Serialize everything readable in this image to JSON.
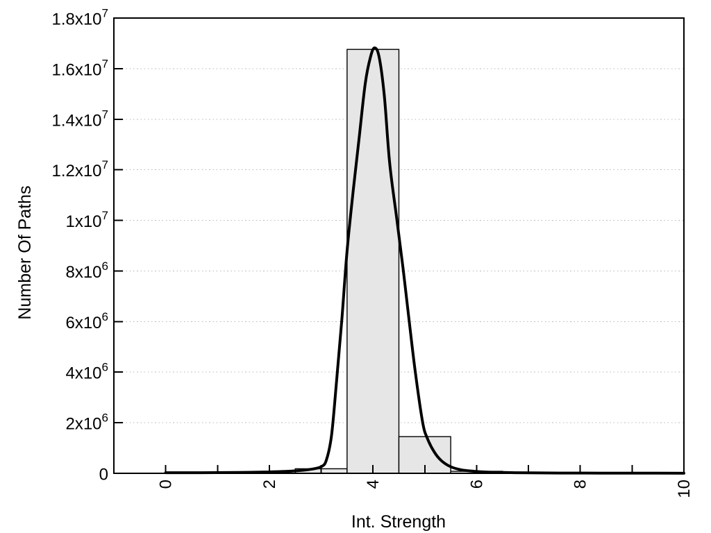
{
  "chart_data": {
    "type": "bar",
    "subtype": "histogram_with_fit_curve",
    "title": "",
    "xlabel": "Int. Strength",
    "ylabel": "Number Of Paths",
    "xlim": [
      -1,
      10
    ],
    "ylim": [
      0,
      18000000
    ],
    "grid": "dotted horizontal at each labeled y tick",
    "legend": "none",
    "x_major_ticks": [
      {
        "v": 0,
        "label": "0"
      },
      {
        "v": 2,
        "label": "2"
      },
      {
        "v": 4,
        "label": "4"
      },
      {
        "v": 6,
        "label": "6"
      },
      {
        "v": 8,
        "label": "8"
      },
      {
        "v": 10,
        "label": "10"
      }
    ],
    "x_minor_ticks": [
      1,
      3,
      5,
      7,
      9
    ],
    "y_ticks": [
      {
        "v": 0,
        "label": "0"
      },
      {
        "v": 2000000,
        "label": "2x10^6"
      },
      {
        "v": 4000000,
        "label": "4x10^6"
      },
      {
        "v": 6000000,
        "label": "6x10^6"
      },
      {
        "v": 8000000,
        "label": "8x10^6"
      },
      {
        "v": 10000000,
        "label": "1x10^7"
      },
      {
        "v": 12000000,
        "label": "1.2x10^7"
      },
      {
        "v": 14000000,
        "label": "1.4x10^7"
      },
      {
        "v": 16000000,
        "label": "1.6x10^7"
      },
      {
        "v": 18000000,
        "label": "1.8x10^7"
      }
    ],
    "grid_y_values": [
      2000000,
      4000000,
      6000000,
      8000000,
      10000000,
      12000000,
      14000000,
      16000000
    ],
    "bars": [
      {
        "x0": 2.5,
        "x1": 3.5,
        "y": 180000
      },
      {
        "x0": 3.5,
        "x1": 4.5,
        "y": 16760000
      },
      {
        "x0": 4.5,
        "x1": 5.5,
        "y": 1450000
      },
      {
        "x0": 5.5,
        "x1": 6.5,
        "y": 80000
      }
    ],
    "curve_points": [
      [
        0,
        25000
      ],
      [
        0.7,
        25000
      ],
      [
        1.4,
        32000
      ],
      [
        2.0,
        55000
      ],
      [
        2.5,
        95000
      ],
      [
        2.8,
        160000
      ],
      [
        3.0,
        260000
      ],
      [
        3.1,
        520000
      ],
      [
        3.2,
        1500000
      ],
      [
        3.3,
        3700000
      ],
      [
        3.4,
        6100000
      ],
      [
        3.5,
        8800000
      ],
      [
        3.62,
        11200000
      ],
      [
        3.73,
        13200000
      ],
      [
        3.85,
        15400000
      ],
      [
        3.95,
        16450000
      ],
      [
        4.03,
        16820000
      ],
      [
        4.12,
        16450000
      ],
      [
        4.22,
        14900000
      ],
      [
        4.32,
        12300000
      ],
      [
        4.45,
        10200000
      ],
      [
        4.58,
        8100000
      ],
      [
        4.7,
        6000000
      ],
      [
        4.82,
        3950000
      ],
      [
        4.96,
        2000000
      ],
      [
        5.05,
        1380000
      ],
      [
        5.18,
        850000
      ],
      [
        5.32,
        500000
      ],
      [
        5.5,
        260000
      ],
      [
        5.7,
        140000
      ],
      [
        5.95,
        80000
      ],
      [
        6.2,
        50000
      ],
      [
        6.6,
        30000
      ],
      [
        7.0,
        20000
      ],
      [
        7.6,
        12000
      ],
      [
        8.4,
        8000
      ],
      [
        9.2,
        5000
      ],
      [
        10,
        4000
      ]
    ],
    "colors": {
      "background": "#ffffff",
      "frame": "#000000",
      "bar_fill": "#e6e6e6",
      "bar_stroke": "#000000",
      "curve": "#000000",
      "grid": "#b9b9b9",
      "text": "#000000"
    }
  }
}
